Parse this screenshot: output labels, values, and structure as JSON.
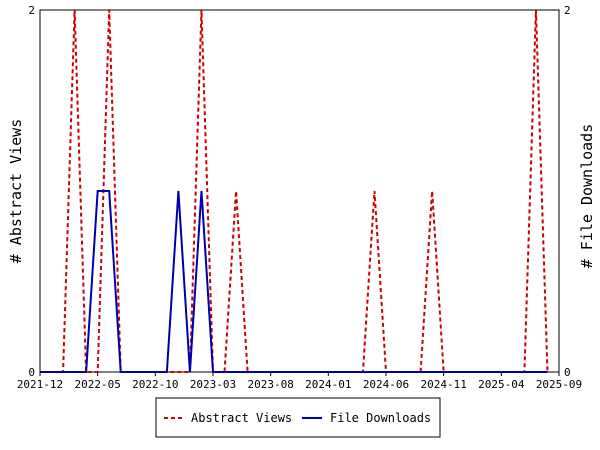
{
  "chart_data": {
    "type": "line",
    "y_left_label": "# Abstract Views",
    "y_right_label": "# File Downloads",
    "x_ticks": [
      "2021-12",
      "2022-05",
      "2022-10",
      "2023-03",
      "2023-08",
      "2024-01",
      "2024-06",
      "2024-11",
      "2025-04",
      "2025-09"
    ],
    "ylim_left": [
      0,
      2
    ],
    "ylim_right": [
      0,
      2
    ],
    "y_left_ticks": [
      "0",
      "2"
    ],
    "y_right_ticks": [
      "0",
      "2"
    ],
    "xlim": [
      "2021-12",
      "2025-09"
    ],
    "legend_position": "bottom-center",
    "grid": false,
    "series": [
      {
        "name": "Abstract Views",
        "axis": "left",
        "color": "#cc0000",
        "style": "dashed",
        "points": [
          [
            "2021-12",
            0
          ],
          [
            "2022-01",
            0
          ],
          [
            "2022-02",
            0
          ],
          [
            "2022-03",
            2
          ],
          [
            "2022-04",
            0
          ],
          [
            "2022-05",
            0
          ],
          [
            "2022-06",
            2
          ],
          [
            "2022-07",
            0
          ],
          [
            "2022-08",
            0
          ],
          [
            "2022-09",
            0
          ],
          [
            "2022-10",
            0
          ],
          [
            "2022-11",
            0
          ],
          [
            "2022-12",
            0
          ],
          [
            "2023-01",
            0
          ],
          [
            "2023-02",
            2
          ],
          [
            "2023-03",
            0
          ],
          [
            "2023-04",
            0
          ],
          [
            "2023-05",
            1
          ],
          [
            "2023-06",
            0
          ],
          [
            "2023-07",
            0
          ],
          [
            "2023-08",
            0
          ],
          [
            "2023-09",
            0
          ],
          [
            "2023-10",
            0
          ],
          [
            "2023-11",
            0
          ],
          [
            "2023-12",
            0
          ],
          [
            "2024-01",
            0
          ],
          [
            "2024-02",
            0
          ],
          [
            "2024-03",
            0
          ],
          [
            "2024-04",
            0
          ],
          [
            "2024-05",
            1
          ],
          [
            "2024-06",
            0
          ],
          [
            "2024-07",
            0
          ],
          [
            "2024-08",
            0
          ],
          [
            "2024-09",
            0
          ],
          [
            "2024-10",
            1
          ],
          [
            "2024-11",
            0
          ],
          [
            "2024-12",
            0
          ],
          [
            "2025-01",
            0
          ],
          [
            "2025-02",
            0
          ],
          [
            "2025-03",
            0
          ],
          [
            "2025-04",
            0
          ],
          [
            "2025-05",
            0
          ],
          [
            "2025-06",
            0
          ],
          [
            "2025-07",
            2
          ],
          [
            "2025-08",
            0
          ]
        ]
      },
      {
        "name": "File Downloads",
        "axis": "right",
        "color": "#0000aa",
        "style": "solid",
        "points": [
          [
            "2021-12",
            0
          ],
          [
            "2022-01",
            0
          ],
          [
            "2022-02",
            0
          ],
          [
            "2022-03",
            0
          ],
          [
            "2022-04",
            0
          ],
          [
            "2022-05",
            1
          ],
          [
            "2022-06",
            1
          ],
          [
            "2022-07",
            0
          ],
          [
            "2022-08",
            0
          ],
          [
            "2022-09",
            0
          ],
          [
            "2022-10",
            0
          ],
          [
            "2022-11",
            0
          ],
          [
            "2022-12",
            1
          ],
          [
            "2023-01",
            0
          ],
          [
            "2023-02",
            1
          ],
          [
            "2023-03",
            0
          ],
          [
            "2023-04",
            0
          ],
          [
            "2023-05",
            0
          ],
          [
            "2023-06",
            0
          ],
          [
            "2023-07",
            0
          ],
          [
            "2023-08",
            0
          ],
          [
            "2023-09",
            0
          ],
          [
            "2023-10",
            0
          ],
          [
            "2023-11",
            0
          ],
          [
            "2023-12",
            0
          ],
          [
            "2024-01",
            0
          ],
          [
            "2024-02",
            0
          ],
          [
            "2024-03",
            0
          ],
          [
            "2024-04",
            0
          ],
          [
            "2024-05",
            0
          ],
          [
            "2024-06",
            0
          ],
          [
            "2024-07",
            0
          ],
          [
            "2024-08",
            0
          ],
          [
            "2024-09",
            0
          ],
          [
            "2024-10",
            0
          ],
          [
            "2024-11",
            0
          ],
          [
            "2024-12",
            0
          ],
          [
            "2025-01",
            0
          ],
          [
            "2025-02",
            0
          ],
          [
            "2025-03",
            0
          ],
          [
            "2025-04",
            0
          ],
          [
            "2025-05",
            0
          ],
          [
            "2025-06",
            0
          ],
          [
            "2025-07",
            0
          ],
          [
            "2025-08",
            0
          ]
        ]
      }
    ]
  }
}
